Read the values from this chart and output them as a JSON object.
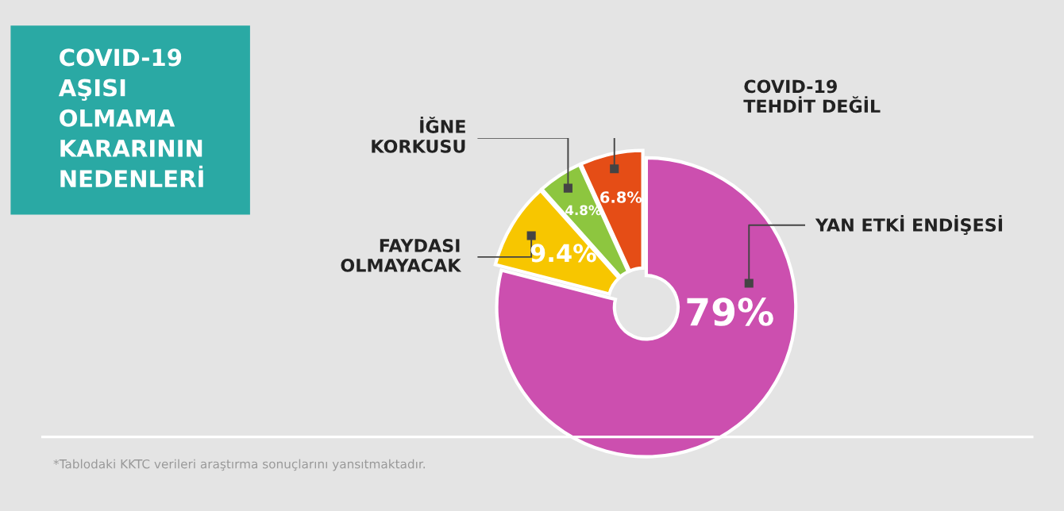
{
  "chart_data": {
    "type": "donut",
    "title": "COVID-19\nAŞISI\nOLMAMA\nKARARININ\nNEDENLERİ",
    "categories": [
      "YAN ETKİ ENDİŞESİ",
      "FAYDASI\nOLMAYACAK",
      "İĞNE\nKORKUSU",
      "COVID-19\nTEHDİT DEĞİL"
    ],
    "values": [
      79,
      9.4,
      4.8,
      6.8
    ],
    "value_labels": [
      "79%",
      "9.4%",
      "4.8%",
      "6.8%"
    ],
    "colors": [
      "#cc4faf",
      "#f7c600",
      "#8dc63f",
      "#e54d16"
    ],
    "legend": false,
    "annotations": [
      "*Tablodaki KKTC verileri araştırma sonuçlarını yansıtmaktadır."
    ]
  }
}
